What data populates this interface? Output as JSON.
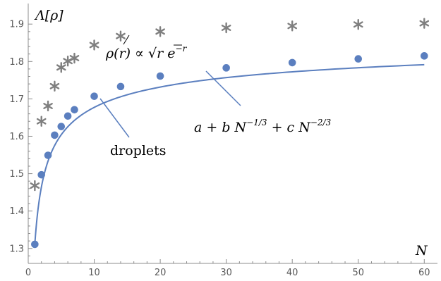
{
  "chart_data": {
    "type": "scatter",
    "xlim": [
      0,
      62
    ],
    "ylim": [
      1.26,
      1.955
    ],
    "x_ticks": [
      "0",
      "10",
      "20",
      "30",
      "40",
      "50",
      "60"
    ],
    "x_tick_values": [
      0,
      10,
      20,
      30,
      40,
      50,
      60
    ],
    "y_ticks": [
      "1.3",
      "1.4",
      "1.5",
      "1.6",
      "1.7",
      "1.8",
      "1.9"
    ],
    "y_tick_values": [
      1.3,
      1.4,
      1.5,
      1.6,
      1.7,
      1.8,
      1.9
    ],
    "xlabel": "N",
    "ylabel": "Λ[ρ]",
    "grid": false,
    "series": [
      {
        "name": "droplets",
        "marker": "circle",
        "color": "#5b7fbf",
        "x": [
          1,
          2,
          3,
          4,
          5,
          6,
          7,
          10,
          14,
          20,
          30,
          40,
          50,
          60
        ],
        "y": [
          1.311,
          1.497,
          1.549,
          1.603,
          1.626,
          1.654,
          1.671,
          1.707,
          1.733,
          1.761,
          1.783,
          1.797,
          1.807,
          1.815
        ]
      },
      {
        "name": "ρ(r) ∝ √r e^−r",
        "marker": "asterisk",
        "color": "#7f7f7f",
        "x": [
          1,
          2,
          3,
          4,
          5,
          6,
          7,
          10,
          14,
          20,
          30,
          40,
          50,
          60
        ],
        "y": [
          1.468,
          1.64,
          1.681,
          1.734,
          1.784,
          1.801,
          1.809,
          1.844,
          1.868,
          1.88,
          1.89,
          1.895,
          1.899,
          1.902
        ]
      },
      {
        "name": "a + b N^−1/3 + c N^−2/3",
        "type": "line",
        "color": "#5b7fbf",
        "fit": {
          "a": 1.9092,
          "b": -0.4143,
          "c": -0.1839
        },
        "x_range": [
          1,
          60
        ]
      }
    ],
    "annotations": {
      "droplets": "droplets",
      "fit": {
        "base": "a + b N",
        "exp1": "−1/3",
        "mid": " + c N",
        "exp2": "−2/3"
      },
      "density": {
        "lhs": "ρ(r) ∝ ",
        "sqrt": "√",
        "r": "r",
        "e": " e",
        "exp": "−r"
      }
    },
    "colors": {
      "circle": "#5b7fbf",
      "fit_line": "#5b7fbf",
      "asterisk": "#7f7f7f",
      "axis": "#8c8c8c"
    }
  }
}
